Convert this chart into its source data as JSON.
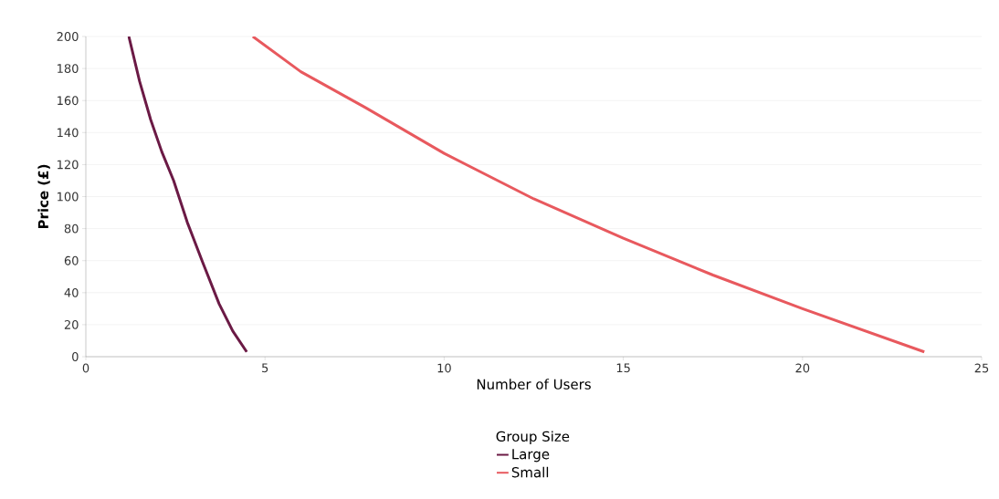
{
  "chart_data": {
    "type": "line",
    "xlabel": "Number of Users",
    "ylabel": "Price (£)",
    "legend_title": "Group Size",
    "legend": "bottom",
    "grid": "y",
    "xlim": [
      0,
      25
    ],
    "ylim": [
      0,
      200
    ],
    "xticks": [
      0,
      5,
      10,
      15,
      20,
      25
    ],
    "yticks": [
      0,
      20,
      40,
      60,
      80,
      100,
      120,
      140,
      160,
      180,
      200
    ],
    "series": [
      {
        "name": "Large",
        "color": "#6b1a45",
        "x": [
          1.2,
          1.5,
          1.81,
          2.12,
          2.45,
          2.83,
          3.26,
          3.72,
          4.1,
          4.49
        ],
        "values": [
          200,
          172,
          148,
          128,
          110,
          84,
          59,
          33,
          16,
          3
        ]
      },
      {
        "name": "Small",
        "color": "#e8595e",
        "x": [
          4.66,
          6.0,
          7.8,
          10,
          12.5,
          15,
          17.5,
          20,
          23.4
        ],
        "values": [
          200,
          178,
          155.6,
          127,
          98.6,
          74,
          51,
          30,
          3
        ]
      }
    ]
  }
}
